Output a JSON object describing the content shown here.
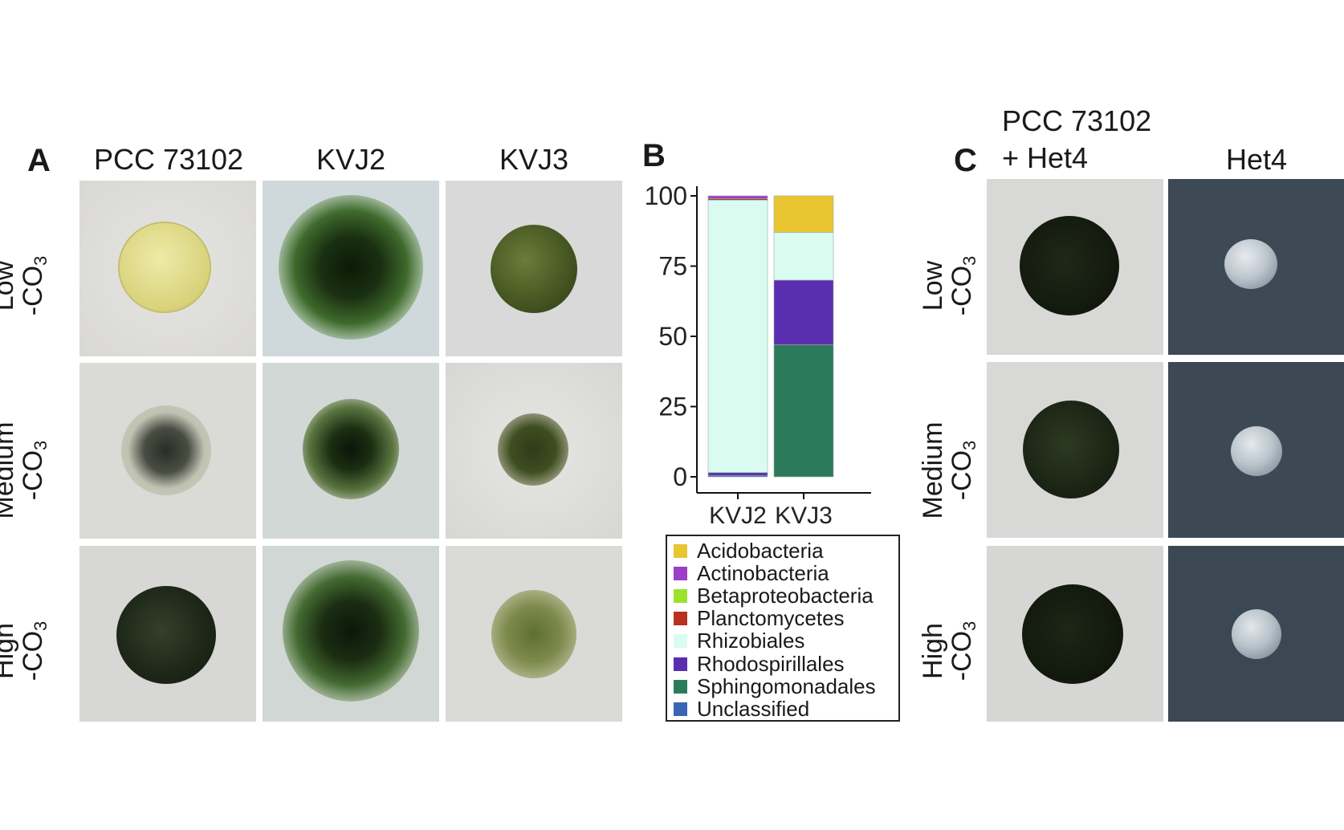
{
  "panel_a": {
    "letter": "A",
    "columns": [
      "PCC 73102",
      "KVJ2",
      "KVJ3"
    ],
    "rows": [
      {
        "level": "Low",
        "sub": "-CO",
        "subscript": "3"
      },
      {
        "level": "Medium",
        "sub": "-CO",
        "subscript": "3"
      },
      {
        "level": "High",
        "sub": "-CO",
        "subscript": "3"
      }
    ]
  },
  "panel_b": {
    "letter": "B"
  },
  "panel_c": {
    "letter": "C",
    "columns": [
      "PCC 73102\n+ Het4",
      "Het4"
    ],
    "col1_line1": "PCC 73102",
    "col1_line2": "+ Het4",
    "col2": "Het4",
    "rows": [
      {
        "level": "Low",
        "sub": "-CO",
        "subscript": "3"
      },
      {
        "level": "Medium",
        "sub": "-CO",
        "subscript": "3"
      },
      {
        "level": "High",
        "sub": "-CO",
        "subscript": "3"
      }
    ]
  },
  "chart_data": {
    "type": "bar",
    "stacked": true,
    "categories": [
      "KVJ2",
      "KVJ3"
    ],
    "ylim": [
      0,
      100
    ],
    "yticks": [
      0,
      25,
      50,
      75,
      100
    ],
    "series": [
      {
        "name": "Acidobacteria",
        "color": "#e8c531",
        "values": [
          0,
          13
        ]
      },
      {
        "name": "Actinobacteria",
        "color": "#9b3fc4",
        "values": [
          1,
          0
        ]
      },
      {
        "name": "Betaproteobacteria",
        "color": "#9be22d",
        "values": [
          0,
          0
        ]
      },
      {
        "name": "Planctomycetes",
        "color": "#b8311f",
        "values": [
          0.5,
          0
        ]
      },
      {
        "name": "Rhizobiales",
        "color": "#d9fbf0",
        "values": [
          97,
          17
        ]
      },
      {
        "name": "Rhodospirillales",
        "color": "#5b2eaf",
        "values": [
          1,
          23
        ]
      },
      {
        "name": "Sphingomonadales",
        "color": "#2c7a5c",
        "values": [
          0,
          47
        ]
      },
      {
        "name": "Unclassified",
        "color": "#3a64b5",
        "values": [
          0.5,
          0
        ]
      }
    ],
    "legend_position": "bottom"
  }
}
